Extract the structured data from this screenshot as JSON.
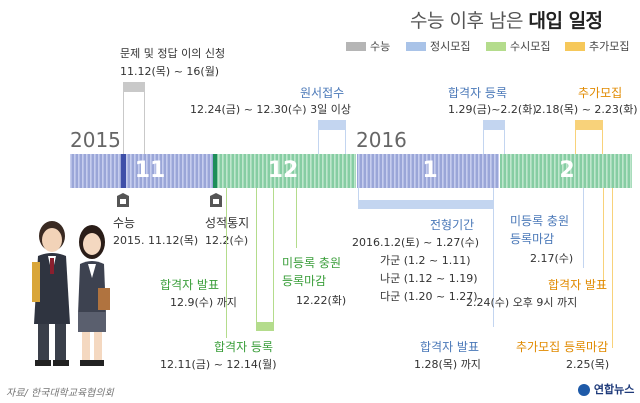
{
  "title_normal": "수능 이후 남은 ",
  "title_bold": "대입 일정",
  "legend": [
    {
      "label": "수능",
      "color": "#b5b5b5"
    },
    {
      "label": "정시모집",
      "color": "#a9c3e8"
    },
    {
      "label": "수시모집",
      "color": "#b4dc8c"
    },
    {
      "label": "추가모집",
      "color": "#f6c85a"
    }
  ],
  "years": [
    "2015",
    "2016"
  ],
  "months": [
    "11",
    "12",
    "1",
    "2"
  ],
  "events": {
    "appeal_title": "문제 및 정답 이의 신청",
    "appeal_date": "11.12(목) ~ 16(월)",
    "apply_title": "원서접수",
    "apply_date": "12.24(금) ~ 12.30(수) 3일 이상",
    "reg1_title": "합격자 등록",
    "reg1_date": "1.29(금)~2.2(화)",
    "extra_title": "추가모집",
    "extra_date": "2.18(목) ~ 2.23(화)",
    "exam_title": "수능",
    "exam_date": "2015. 11.12(목)",
    "score_title": "성적통지",
    "score_date": "12.2(수)",
    "period_title": "전형기간",
    "period_date": "2016.1.2(토) ~ 1.27(수)",
    "ga": "가군 (1.2 ~ 1.11)",
    "na": "나군 (1.12 ~ 1.19)",
    "da": "다군 (1.20 ~ 1.27)",
    "unreg_title_1": "미등록 충원",
    "unreg_title_2": "등록마감",
    "unreg_date": "2.17(수)",
    "pass_s_title": "합격자 발표",
    "pass_s_date": "12.9(수) 까지",
    "unreg_s_title_1": "미등록 충원",
    "unreg_s_title_2": "등록마감",
    "unreg_s_date": "12.22(화)",
    "reg_s_title": "합격자 등록",
    "reg_s_date": "12.11(금) ~ 12.14(월)",
    "pass_j_title": "합격자 발표",
    "pass_j_date": "1.28(목) 까지",
    "pass_e_title": "합격자 발표",
    "pass_e_date": "2.24(수) 오후 9시 까지",
    "reg_e_title": "추가모집 등록마감",
    "reg_e_date": "2.25(목)"
  },
  "source": "자료/ 한국대학교육협의회",
  "brand": "연합뉴스"
}
